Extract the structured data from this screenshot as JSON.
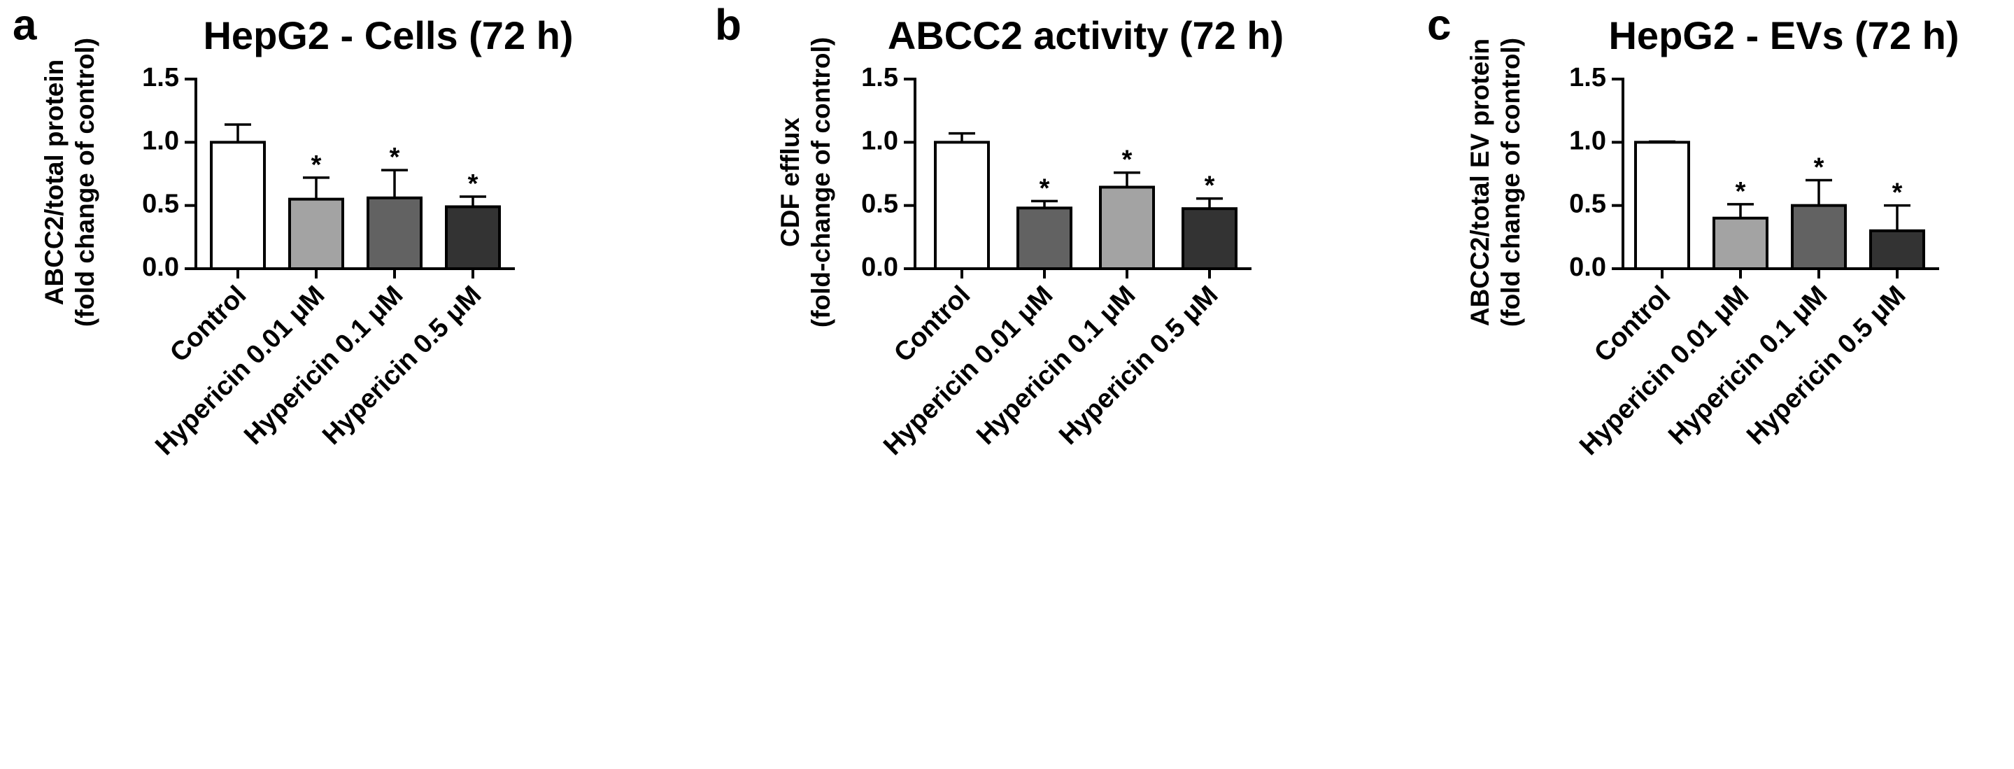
{
  "colors": {
    "axis": "#000000",
    "control": "#ffffff",
    "light_gray": "#a3a3a3",
    "mid_gray": "#626262",
    "dark_gray": "#333333"
  },
  "chart_data": [
    {
      "panel": "a",
      "type": "bar",
      "title": "HepG2 - Cells (72 h)",
      "ylabel_line1": "ABCC2/total protein",
      "ylabel_line2": "(fold change of control)",
      "xlabel": "",
      "ylim": [
        0,
        1.5
      ],
      "yticks": [
        "0.0",
        "0.5",
        "1.0",
        "1.5"
      ],
      "categories": [
        "Control",
        "Hypericin 0.01 μM",
        "Hypericin 0.1 μM",
        "Hypericin 0.5 μM"
      ],
      "values": [
        1.0,
        0.55,
        0.56,
        0.49
      ],
      "errors": [
        0.14,
        0.17,
        0.22,
        0.08
      ],
      "significance": [
        "",
        "*",
        "*",
        "*"
      ],
      "bar_colors": [
        "#ffffff",
        "#a3a3a3",
        "#626262",
        "#333333"
      ],
      "grid": false,
      "legend": "none"
    },
    {
      "panel": "b",
      "type": "bar",
      "title": "ABCC2 activity (72 h)",
      "ylabel_line1": "CDF efflux",
      "ylabel_line2": "(fold-change of control)",
      "xlabel": "",
      "ylim": [
        0,
        1.5
      ],
      "yticks": [
        "0.0",
        "0.5",
        "1.0",
        "1.5"
      ],
      "categories": [
        "Control",
        "Hypericin 0.01 μM",
        "Hypericin 0.1 μM",
        "Hypericin 0.5 μM"
      ],
      "values": [
        1.0,
        0.48,
        0.645,
        0.475
      ],
      "errors": [
        0.07,
        0.055,
        0.115,
        0.08
      ],
      "significance": [
        "",
        "*",
        "*",
        "*"
      ],
      "bar_colors": [
        "#ffffff",
        "#626262",
        "#a3a3a3",
        "#333333"
      ],
      "grid": false,
      "legend": "none"
    },
    {
      "panel": "c",
      "type": "bar",
      "title": "HepG2 - EVs (72 h)",
      "ylabel_line1": "ABCC2/total EV protein",
      "ylabel_line2": "(fold change of control)",
      "xlabel": "",
      "ylim": [
        0,
        1.5
      ],
      "yticks": [
        "0.0",
        "0.5",
        "1.0",
        "1.5"
      ],
      "categories": [
        "Control",
        "Hypericin 0.01 μM",
        "Hypericin 0.1 μM",
        "Hypericin 0.5 μM"
      ],
      "values": [
        1.0,
        0.4,
        0.5,
        0.3
      ],
      "errors": [
        0.005,
        0.11,
        0.2,
        0.2
      ],
      "significance": [
        "",
        "*",
        "*",
        "*"
      ],
      "bar_colors": [
        "#ffffff",
        "#a3a3a3",
        "#626262",
        "#333333"
      ],
      "grid": false,
      "legend": "none"
    }
  ]
}
